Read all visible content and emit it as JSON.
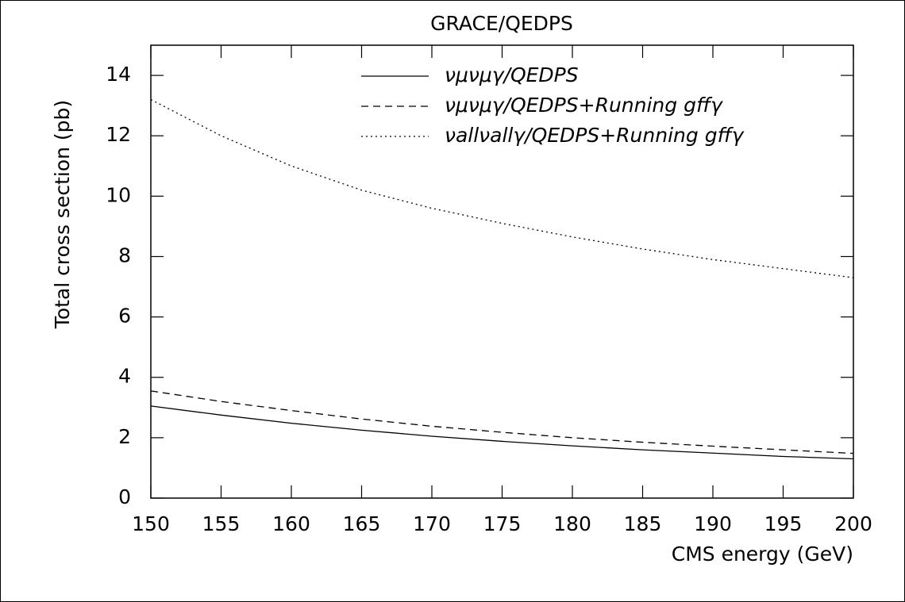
{
  "chart_data": {
    "type": "line",
    "title": "GRACE/QEDPS",
    "x_label": "CMS energy (GeV)",
    "y_label": "Total cross section (pb)",
    "x": [
      150,
      155,
      160,
      165,
      170,
      175,
      180,
      185,
      190,
      195,
      200
    ],
    "series": [
      {
        "name": "νμνμγ/QEDPS",
        "color": "#000000",
        "dash": "solid",
        "values": [
          3.05,
          2.75,
          2.48,
          2.25,
          2.05,
          1.88,
          1.73,
          1.6,
          1.49,
          1.38,
          1.3
        ]
      },
      {
        "name": "νμνμγ/QEDPS+Running gffγ",
        "color": "#000000",
        "dash": "dashed",
        "values": [
          3.55,
          3.2,
          2.9,
          2.62,
          2.38,
          2.18,
          2.0,
          1.85,
          1.72,
          1.6,
          1.48
        ]
      },
      {
        "name": "νallνallγ/QEDPS+Running gffγ",
        "color": "#000000",
        "dash": "dotted",
        "values": [
          13.2,
          12.0,
          11.0,
          10.2,
          9.6,
          9.1,
          8.65,
          8.25,
          7.9,
          7.6,
          7.3
        ]
      }
    ],
    "xlim": [
      150,
      200
    ],
    "xticks": [
      150,
      155,
      160,
      165,
      170,
      175,
      180,
      185,
      190,
      195,
      200
    ],
    "ylim": [
      0,
      15
    ],
    "yticks": [
      0,
      2,
      4,
      6,
      8,
      10,
      12,
      14
    ],
    "grid": false,
    "legend": "top"
  }
}
